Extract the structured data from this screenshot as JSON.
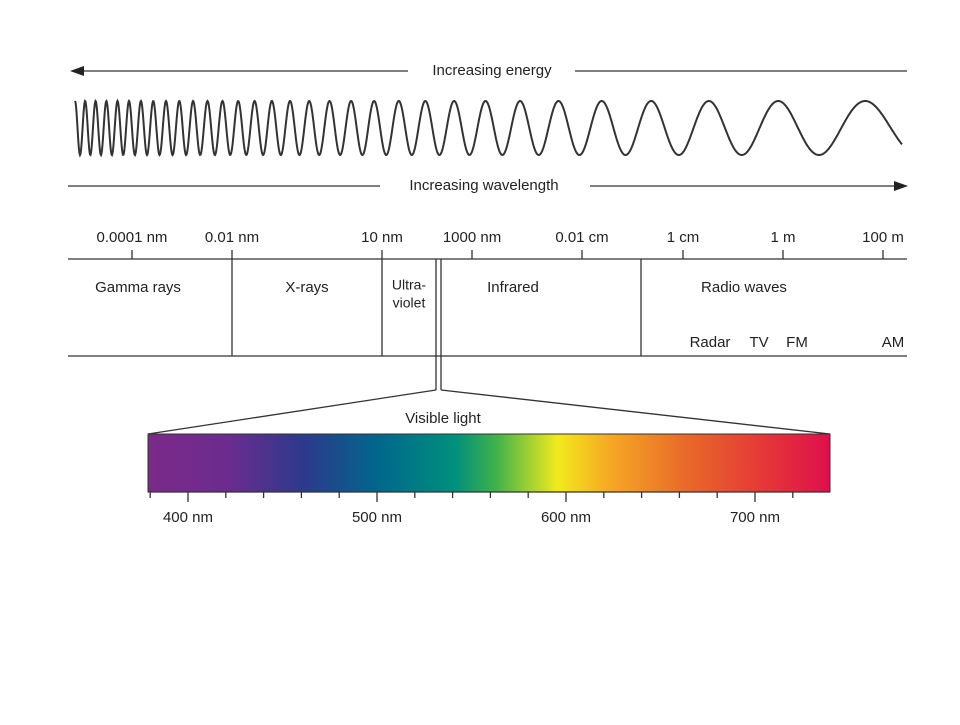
{
  "energy_label": "Increasing energy",
  "wavelength_label": "Increasing wavelength",
  "scale_labels": [
    "0.0001 nm",
    "0.01 nm",
    "10 nm",
    "1000 nm",
    "0.01 cm",
    "1 cm",
    "1 m",
    "100 m"
  ],
  "regions": [
    [
      "Gamma rays"
    ],
    [
      "X-rays"
    ],
    [
      "Ultra-",
      "violet"
    ],
    [
      "Infrared"
    ],
    [
      "Radio waves"
    ]
  ],
  "radio_bands": [
    "Radar",
    "TV",
    "FM",
    "AM"
  ],
  "visible_label": "Visible light",
  "visible_scale": [
    "400 nm",
    "500 nm",
    "600 nm",
    "700 nm"
  ]
}
